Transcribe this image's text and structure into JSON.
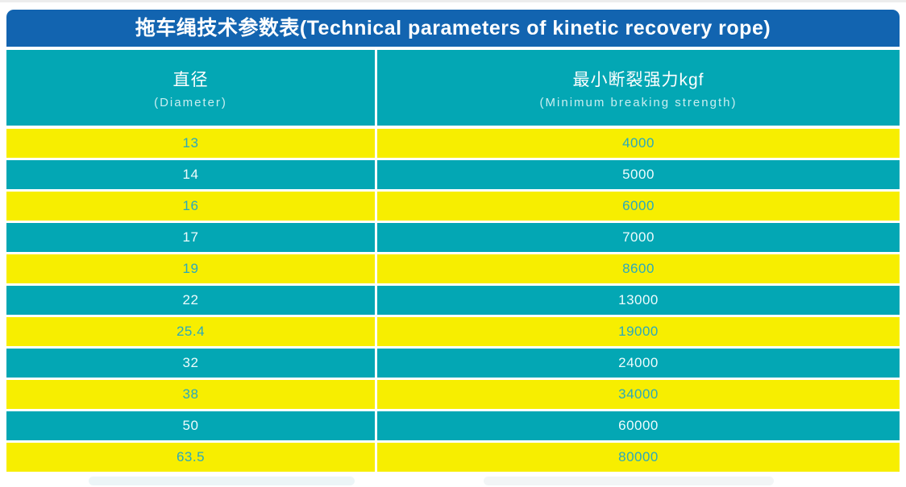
{
  "title": "拖车绳技术参数表(Technical parameters of kinetic recovery rope)",
  "table": {
    "columns": [
      {
        "zh": "直径",
        "en": "(Diameter)"
      },
      {
        "zh": "最小断裂强力kgf",
        "en": "(Minimum breaking strength)"
      }
    ],
    "rows": [
      {
        "diameter": "13",
        "strength": "4000"
      },
      {
        "diameter": "14",
        "strength": "5000"
      },
      {
        "diameter": "16",
        "strength": "6000"
      },
      {
        "diameter": "17",
        "strength": "7000"
      },
      {
        "diameter": "19",
        "strength": "8600"
      },
      {
        "diameter": "22",
        "strength": "13000"
      },
      {
        "diameter": "25.4",
        "strength": "19000"
      },
      {
        "diameter": "32",
        "strength": "24000"
      },
      {
        "diameter": "38",
        "strength": "34000"
      },
      {
        "diameter": "50",
        "strength": "60000"
      },
      {
        "diameter": "63.5",
        "strength": "80000"
      }
    ]
  },
  "colors": {
    "title_bar_blue": "#1264b0",
    "teal": "#03a7b4",
    "yellow": "#f7ee00",
    "teal_text_on_yellow": "#2aa9bd",
    "light_text_on_teal": "#eefcfd",
    "header_subtext": "#c9eef1"
  }
}
